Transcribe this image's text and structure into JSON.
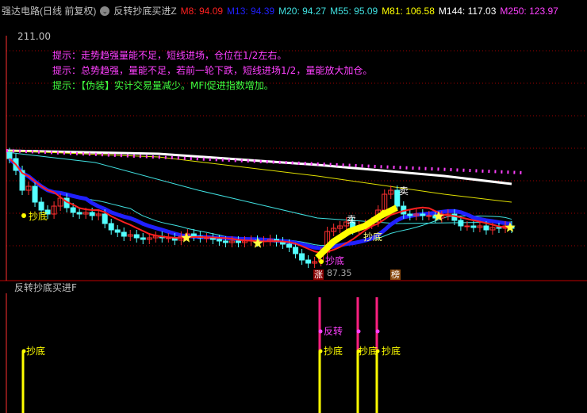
{
  "header": {
    "stock": "强达电路(日线 前复权)",
    "indicator": "反转抄底买进Z",
    "ma": [
      {
        "label": "M8: 94.09",
        "color": "#ff2020"
      },
      {
        "label": "M13: 94.39",
        "color": "#2020ff"
      },
      {
        "label": "M20: 94.27",
        "color": "#40e0e0"
      },
      {
        "label": "M55: 95.09",
        "color": "#40e0e0"
      },
      {
        "label": "M81: 106.58",
        "color": "#ffff00"
      },
      {
        "label": "M144: 117.03",
        "color": "#ffffff"
      },
      {
        "label": "M250: 123.97",
        "color": "#ff40ff"
      }
    ]
  },
  "price_top": "211.00",
  "price_low": "87.35",
  "tips": [
    {
      "text": "提示：走势趋强量能不足，短线进场，仓位在1/2左右。",
      "color": "#ff40ff"
    },
    {
      "text": "提示：总势趋强，量能不足，若前一轮下跌，短线进场1/2，量能放大加仓。",
      "color": "#ff40ff"
    },
    {
      "text": "提示：【伪装】实计交易量减少。MFI促进指数增加。",
      "color": "#40ff40"
    }
  ],
  "markers": {
    "buy": "抄底",
    "sell": "卖",
    "reverse": "反转",
    "badge_up": "涨",
    "badge_rank": "榜"
  },
  "closes": [
    113,
    110,
    105,
    106,
    102,
    100,
    99,
    101,
    103,
    100.6,
    99.4,
    99,
    99.4,
    98.6,
    99,
    96.6,
    95,
    94.4,
    93.4,
    93.8,
    93,
    92.6,
    93,
    93.4,
    93,
    93,
    92.4,
    93.4,
    94,
    93.4,
    93,
    93,
    92.6,
    92.2,
    91.8,
    92.2,
    91.8,
    92.2,
    92.4,
    92,
    92.2,
    92.6,
    92,
    91.4,
    90.6,
    89,
    87.4,
    86.6,
    87,
    89.4,
    94.6,
    95.4,
    96,
    97,
    95,
    96,
    96.4,
    97,
    100,
    104,
    105,
    101,
    99,
    98.6,
    99,
    98.6,
    98.6,
    98,
    98.6,
    99,
    97.4,
    96,
    96,
    95.6,
    96,
    95,
    95.6,
    95.4,
    96,
    95.4
  ],
  "lower_panel": {
    "title": "反转抄底买进F"
  },
  "colors": {
    "up": "#ff3030",
    "down": "#54ffff",
    "grid": "#a00000",
    "bg": "#000000"
  }
}
